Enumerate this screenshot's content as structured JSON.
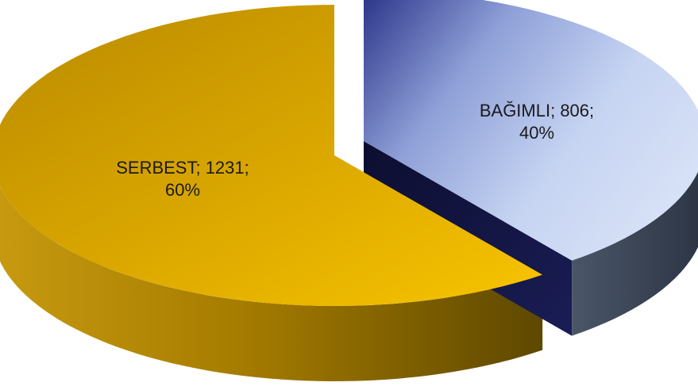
{
  "chart_data": {
    "type": "pie",
    "style": "3d-exploded",
    "slices": [
      {
        "label": "BAĞIMLI",
        "value": 806,
        "percent": "40%",
        "value_text": "806",
        "color_top": "#2f3a8c",
        "color_top_light": "#c3d3f0",
        "color_side": "#3a4658",
        "color_inner": "#101240"
      },
      {
        "label": "SERBEST",
        "value": 1231,
        "percent": "60%",
        "value_text": "1231",
        "color_top": "#b88a00",
        "color_top_light": "#f6c200",
        "color_side": "#6b5200",
        "color_side_light": "#c79a10"
      }
    ],
    "labels": [
      {
        "line1": "BAĞIMLI; 806;",
        "line2": "40%"
      },
      {
        "line1": "SERBEST; 1231;",
        "line2": "60%"
      }
    ],
    "legend": "none"
  }
}
